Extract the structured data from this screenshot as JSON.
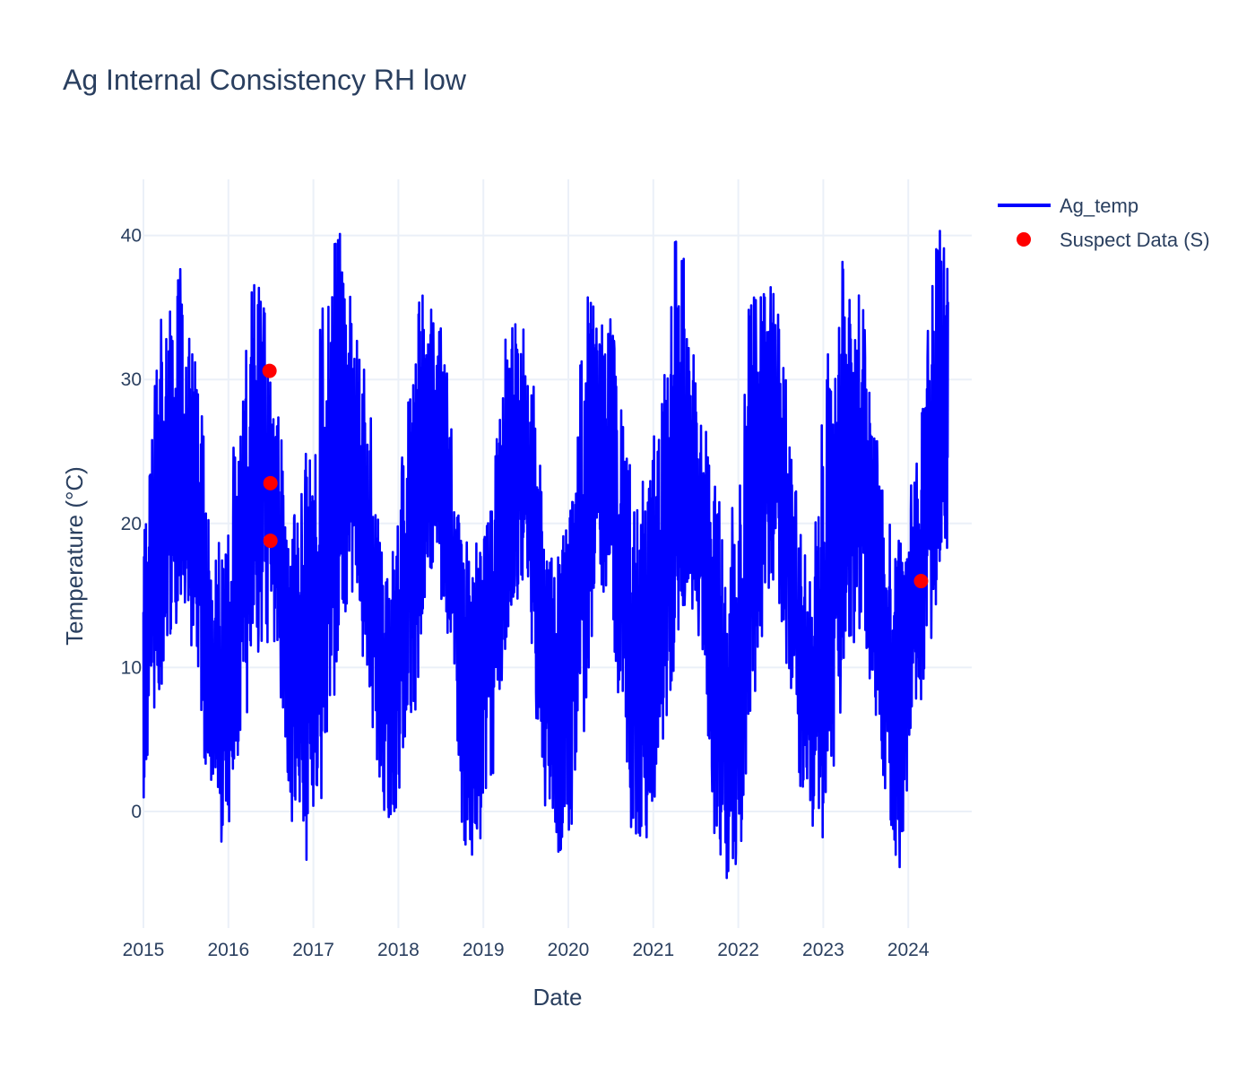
{
  "chart_data": {
    "type": "line",
    "title": "Ag Internal Consistency RH low",
    "xlabel": "Date",
    "ylabel": "Temperature (°C)",
    "x_ticks": [
      "2015",
      "2016",
      "2017",
      "2018",
      "2019",
      "2020",
      "2021",
      "2022",
      "2023",
      "2024"
    ],
    "y_ticks": [
      0,
      10,
      20,
      30,
      40
    ],
    "xlim": [
      "2015-01-01",
      "2024-09-15"
    ],
    "ylim": [
      -8.5,
      44
    ],
    "grid": true,
    "legend_position": "top-right",
    "series": [
      {
        "name": "Ag_temp",
        "mode": "line",
        "color": "#0000ff",
        "x": [
          "2015-01-01",
          "2015-02-15",
          "2015-04-01",
          "2015-05-15",
          "2015-07-01",
          "2015-08-15",
          "2015-10-01",
          "2015-11-15",
          "2016-01-01",
          "2016-02-15",
          "2016-04-01",
          "2016-05-15",
          "2016-07-01",
          "2016-08-15",
          "2016-10-01",
          "2016-11-15",
          "2017-01-01",
          "2017-02-15",
          "2017-04-01",
          "2017-05-15",
          "2017-07-01",
          "2017-08-15",
          "2017-10-01",
          "2017-11-15",
          "2018-01-01",
          "2018-02-15",
          "2018-04-01",
          "2018-05-15",
          "2018-07-01",
          "2018-08-15",
          "2018-10-01",
          "2018-11-15",
          "2019-01-01",
          "2019-02-15",
          "2019-04-01",
          "2019-05-15",
          "2019-07-01",
          "2019-08-15",
          "2019-10-01",
          "2019-11-15",
          "2020-01-01",
          "2020-02-15",
          "2020-04-01",
          "2020-05-15",
          "2020-07-01",
          "2020-08-15",
          "2020-10-01",
          "2020-11-15",
          "2021-01-01",
          "2021-02-15",
          "2021-04-01",
          "2021-05-15",
          "2021-07-01",
          "2021-08-15",
          "2021-10-01",
          "2021-11-15",
          "2022-01-01",
          "2022-02-15",
          "2022-04-01",
          "2022-05-15",
          "2022-07-01",
          "2022-08-15",
          "2022-10-01",
          "2022-11-15",
          "2023-01-01",
          "2023-02-15",
          "2023-04-01",
          "2023-05-15",
          "2023-07-01",
          "2023-08-15",
          "2023-10-01",
          "2023-11-15",
          "2024-01-01",
          "2024-02-15",
          "2024-04-01",
          "2024-05-15",
          "2024-06-20"
        ],
        "mean": [
          11,
          15,
          21,
          24,
          23,
          18,
          12,
          8,
          10,
          15,
          21,
          24,
          22,
          17,
          11,
          8,
          10,
          15,
          21,
          24,
          23,
          18,
          12,
          7,
          11,
          16,
          22,
          25,
          23,
          17,
          11,
          7,
          11,
          16,
          21,
          24,
          22,
          16,
          10,
          6,
          11,
          16,
          22,
          25,
          23,
          17,
          11,
          7,
          11,
          16,
          22,
          25,
          23,
          17,
          11,
          6,
          11,
          16,
          22,
          25,
          23,
          17,
          11,
          7,
          11,
          16,
          22,
          25,
          23,
          17,
          11,
          7,
          11,
          16,
          22,
          25,
          27
        ],
        "min": [
          -1,
          4,
          8,
          12,
          14,
          9,
          2,
          -2,
          -3,
          2,
          8,
          11,
          12,
          6,
          -2,
          -4,
          -3,
          2,
          8,
          12,
          13,
          9,
          0,
          -2,
          -1,
          3,
          9,
          14,
          15,
          8,
          -3,
          -3,
          -2,
          3,
          9,
          14,
          14,
          6,
          -1,
          -6,
          -4,
          3,
          8,
          13,
          14,
          6,
          -3,
          -4,
          0,
          3,
          8,
          14,
          14,
          6,
          -4,
          -6,
          -4,
          2,
          8,
          14,
          14,
          6,
          -1,
          -3,
          -3,
          3,
          8,
          11,
          11,
          6,
          -2,
          -5,
          0,
          5,
          10,
          16,
          16
        ],
        "max": [
          22,
          30,
          37,
          40,
          38,
          32,
          24,
          19,
          22,
          30,
          37,
          37,
          32,
          26,
          21,
          24,
          30,
          37,
          41,
          40,
          37,
          30,
          24,
          18,
          22,
          32,
          36,
          36,
          35,
          28,
          21,
          18,
          20,
          25,
          34,
          36,
          35,
          30,
          19,
          18,
          21,
          30,
          38,
          36,
          36,
          30,
          26,
          24,
          27,
          33,
          40,
          41,
          34,
          27,
          23,
          20,
          24,
          35,
          37,
          37,
          35,
          26,
          20,
          16,
          30,
          35,
          39,
          38,
          34,
          27,
          20,
          20,
          22,
          26,
          36,
          41,
          41
        ]
      },
      {
        "name": "Suspect Data (S)",
        "mode": "markers",
        "color": "#ff0000",
        "points": [
          {
            "x": "2016-06-26",
            "y": 30.6
          },
          {
            "x": "2016-06-30",
            "y": 22.8
          },
          {
            "x": "2016-06-30",
            "y": 18.8
          },
          {
            "x": "2024-02-25",
            "y": 16.0
          }
        ]
      }
    ]
  }
}
